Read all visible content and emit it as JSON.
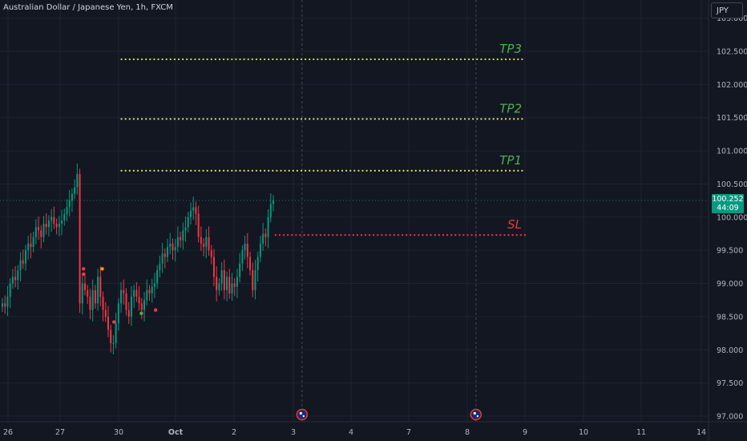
{
  "header": {
    "title": "Australian Dollar / Japanese Yen, 1h, FXCM",
    "currency_button": "JPY"
  },
  "price_label": {
    "price": "100.252",
    "countdown": "44:09"
  },
  "colors": {
    "background": "#131722",
    "grid": "#1f2330",
    "up": "#089981",
    "down": "#f23645",
    "target_line": "#d4e157",
    "target_text": "#4caf50",
    "stop_line": "#f23645",
    "stop_text": "#f23645",
    "axis_text": "#b2b5be"
  },
  "chart_data": {
    "type": "candlestick",
    "y_ticks": [
      "97.000",
      "97.500",
      "98.000",
      "98.500",
      "99.000",
      "99.500",
      "100.000",
      "100.500",
      "101.000",
      "101.500",
      "102.000",
      "102.500",
      "103.000"
    ],
    "ylim": [
      96.95,
      103.2
    ],
    "x_ticks": [
      {
        "label": "26",
        "day": 26
      },
      {
        "label": "27",
        "day": 27
      },
      {
        "label": "30",
        "day": 28
      },
      {
        "label": "Oct",
        "day": 29
      },
      {
        "label": "2",
        "day": 30
      },
      {
        "label": "3",
        "day": 31
      },
      {
        "label": "4",
        "day": 32
      },
      {
        "label": "7",
        "day": 33
      },
      {
        "label": "8",
        "day": 34
      },
      {
        "label": "9",
        "day": 35
      },
      {
        "label": "10",
        "day": 36
      },
      {
        "label": "11",
        "day": 37
      },
      {
        "label": "14",
        "day": 38
      }
    ],
    "current_price": 100.252,
    "levels": [
      {
        "label": "TP3",
        "value": 102.38,
        "kind": "target",
        "x_start": 28.05,
        "x_end": 35.0
      },
      {
        "label": "TP2",
        "value": 101.48,
        "kind": "target",
        "x_start": 28.05,
        "x_end": 35.0
      },
      {
        "label": "TP1",
        "value": 100.7,
        "kind": "target",
        "x_start": 28.05,
        "x_end": 35.0
      },
      {
        "label": "SL",
        "value": 99.73,
        "kind": "stop",
        "x_start": 30.7,
        "x_end": 35.0
      }
    ],
    "event_markers": [
      {
        "day": 31.15,
        "icon": "australia-flag-icon"
      },
      {
        "day": 34.15,
        "icon": "australia-flag-icon"
      }
    ],
    "signal_dots": [
      {
        "x": 27.4,
        "y": 99.22,
        "color": "#f23645"
      },
      {
        "x": 27.4,
        "y": 99.14,
        "color": "#f23645"
      },
      {
        "x": 27.72,
        "y": 99.22,
        "color": "#ff9800"
      },
      {
        "x": 27.92,
        "y": 98.42,
        "color": "#f23645"
      },
      {
        "x": 28.4,
        "y": 98.55,
        "color": "#4caf50"
      },
      {
        "x": 28.65,
        "y": 98.6,
        "color": "#f23645"
      }
    ],
    "ohlc_close": [
      98.7,
      98.65,
      98.8,
      99.0,
      99.1,
      99.05,
      99.2,
      99.35,
      99.3,
      99.5,
      99.6,
      99.55,
      99.7,
      99.85,
      99.8,
      99.7,
      99.9,
      99.85,
      99.95,
      100.0,
      99.9,
      99.85,
      99.9,
      99.95,
      100.05,
      100.15,
      100.25,
      100.35,
      100.45,
      100.65,
      98.7,
      99.0,
      98.9,
      98.8,
      98.6,
      98.9,
      98.7,
      99.1,
      98.8,
      98.6,
      98.5,
      98.3,
      98.1,
      98.1,
      98.4,
      98.7,
      98.9,
      98.85,
      98.6,
      98.5,
      98.8,
      98.9,
      98.8,
      98.7,
      98.6,
      98.75,
      98.9,
      98.85,
      98.95,
      99.0,
      99.2,
      99.3,
      99.45,
      99.4,
      99.55,
      99.6,
      99.5,
      99.55,
      99.7,
      99.65,
      99.8,
      99.85,
      100.0,
      100.1,
      100.15,
      100.05,
      99.7,
      99.6,
      99.55,
      99.7,
      99.5,
      99.4,
      99.1,
      98.9,
      99.0,
      99.2,
      98.9,
      99.1,
      98.85,
      99.0,
      98.95,
      99.1,
      99.3,
      99.5,
      99.6,
      99.4,
      99.2,
      98.9,
      99.2,
      99.4,
      99.6,
      99.75,
      99.7,
      100.0,
      100.2,
      100.252
    ]
  }
}
